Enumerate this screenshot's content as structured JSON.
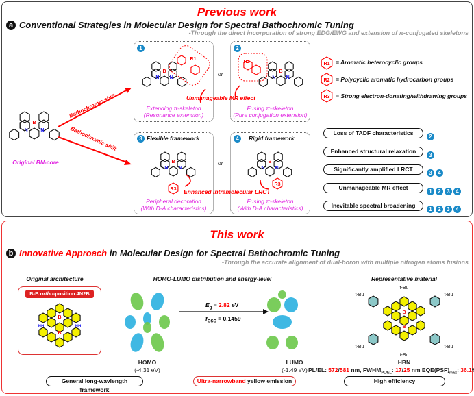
{
  "panel_a": {
    "heading": "Previous work",
    "letter": "a",
    "title": "Conventional Strategies in Molecular Design for Spectral Bathochromic Tuning",
    "subtitle": "-Through the direct incorporation of strong EDG/EWG and extension of π-conjugated skeletons",
    "core_label": "Original BN-core",
    "arrow_label": "Bathochromic shift",
    "or": "or",
    "strategies": [
      {
        "num": "1",
        "caption1": "Extending π-skeleton",
        "caption2": "(Resonance extension)"
      },
      {
        "num": "2",
        "caption1": "Fusing π-skeleton",
        "caption2": "(Pure conjugation extension)"
      },
      {
        "num": "3",
        "framework": "Flexible framework",
        "caption1": "Peripheral decoration",
        "caption2": "(With D-A characteristics)"
      },
      {
        "num": "4",
        "framework": "Rigid framework",
        "caption1": "Fusing π-skeleton",
        "caption2": "(With D-A characteristics)"
      }
    ],
    "mr_effect_label": "Unmanageable  MR effect",
    "lrct_label": "Enhanced intramolecular LRCT",
    "legend": [
      {
        "r": "R1",
        "sub": "1",
        "text": "= Aromatic heterocyclic groups"
      },
      {
        "r": "R2",
        "sub": "2",
        "text": "= Polycyclic aromatic hydrocarbon groups"
      },
      {
        "r": "R3",
        "sub": "3",
        "text": "= Strong electron-donating/withdrawing groups"
      }
    ],
    "drawbacks": [
      {
        "text": "Loss of TADF characteristics",
        "refs": [
          "2"
        ]
      },
      {
        "text": "Enhanced structural relaxation",
        "refs": [
          "3"
        ]
      },
      {
        "text": "Significantly amplified LRCT",
        "refs": [
          "3",
          "4"
        ]
      },
      {
        "text": "Unmanageable  MR effect",
        "refs": [
          "1",
          "2",
          "3",
          "4"
        ]
      },
      {
        "text": "Inevitable spectral broadening",
        "refs": [
          "1",
          "2",
          "3",
          "4"
        ]
      }
    ]
  },
  "panel_b": {
    "heading": "This work",
    "letter": "b",
    "title_red": "Innovative Approach",
    "title_rest": " in Molecular Design for Spectral Bathochromic Tuning",
    "subtitle": "-Through the accurate alignment of dual-boron with multiple nitrogen atoms fusions",
    "col1_title": "Original architecture",
    "col2_title": "HOMO-LUMO distribution and energy-level",
    "col3_title": "Representative material",
    "arch_badge_pre": "B-B ",
    "arch_badge_ital": "ortho",
    "arch_badge_post": "-position 4N2B",
    "eg_label": "E",
    "eg_sub": "g",
    "eg_eq": " = ",
    "eg_value": "2.82",
    "eg_unit": " eV",
    "fosc_label": "f",
    "fosc_sub": "OSC",
    "fosc_value": " = 0.1459",
    "homo_label": "HOMO",
    "homo_energy": "(-4.31 eV)",
    "lumo_label": "LUMO",
    "lumo_energy": "(-1.49 eV)",
    "material_name": "HBN",
    "tbu": "t-Bu",
    "metrics": {
      "p1": "PL/EL: ",
      "pl": "572",
      "slash1": "/",
      "el": "581",
      "p2": " nm, FWHM",
      "fwhm_sub": "PL/EL",
      "p3": ": ",
      "fwhm_pl": "17",
      "slash2": "/",
      "fwhm_el": "25",
      "p4": " nm EQE(PSF)",
      "eqe_sub": "max",
      "p5": ": ",
      "eqe": "36.1",
      "p6": "%"
    },
    "pill1": "General long-wavlength framework",
    "pill2_red": "Ultra-narrowband",
    "pill2_rest": " yellow emission",
    "pill3": "High efficiency"
  },
  "colors": {
    "red": "#ff0000",
    "magenta": "#e020e0",
    "badge_blue": "#1a8ac8",
    "homo_blue": "#2ab0e0",
    "lobe_green": "#6cc84a",
    "core_yellow": "#f4f000"
  }
}
